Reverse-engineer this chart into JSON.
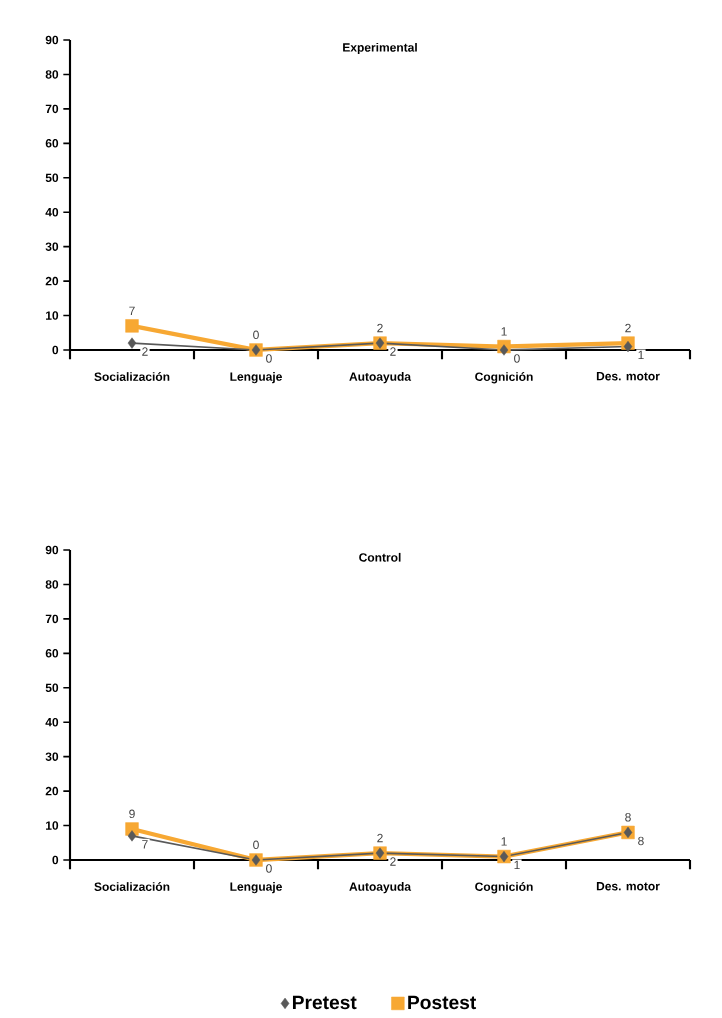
{
  "chart_data": [
    {
      "type": "line",
      "title": "Experimental",
      "categories": [
        "Socialización",
        "Lenguaje",
        "Autoayuda",
        "Cognición",
        "Des. motor"
      ],
      "ylim": [
        0,
        90
      ],
      "yticks": [
        0,
        10,
        20,
        30,
        40,
        50,
        60,
        70,
        80,
        90
      ],
      "data_labels": true,
      "series": [
        {
          "color": "#595959",
          "marker": "diamond",
          "values": [
            2,
            0,
            2,
            0,
            1
          ]
        },
        {
          "color": "#f7a833",
          "marker": "square",
          "values": [
            7,
            0,
            2,
            1,
            2
          ]
        }
      ]
    },
    {
      "type": "line",
      "title": "Control",
      "categories": [
        "Socialización",
        "Lenguaje",
        "Autoayuda",
        "Cognición",
        "Des. motor"
      ],
      "ylim": [
        0,
        90
      ],
      "yticks": [
        0,
        10,
        20,
        30,
        40,
        50,
        60,
        70,
        80,
        90
      ],
      "data_labels": true,
      "legend": "bottom",
      "series": [
        {
          "name": "Pretest",
          "color": "#595959",
          "marker": "diamond",
          "values": [
            7,
            0,
            2,
            1,
            8
          ]
        },
        {
          "name": "Postest",
          "color": "#f7a833",
          "marker": "square",
          "values": [
            9,
            0,
            2,
            1,
            8
          ]
        }
      ]
    }
  ]
}
